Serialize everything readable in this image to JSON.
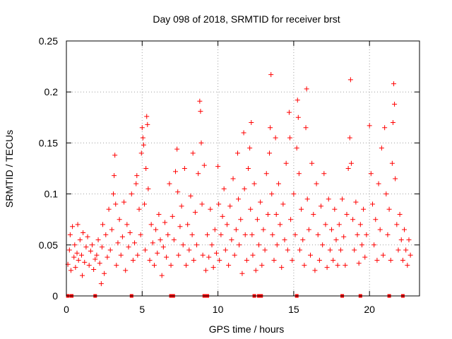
{
  "chart_data": {
    "type": "scatter",
    "title": "Day 098 of 2018, SRMTID for receiver brst",
    "xlabel": "GPS time / hours",
    "ylabel": "SRMTID / TECUs",
    "xlim": [
      0,
      23.3
    ],
    "ylim": [
      0,
      0.25
    ],
    "x_ticks": [
      0,
      5,
      10,
      15,
      20
    ],
    "x_tick_labels": [
      "0",
      "5",
      "10",
      "15",
      "20"
    ],
    "y_ticks": [
      0,
      0.05,
      0.1,
      0.15,
      0.2,
      0.25
    ],
    "y_tick_labels": [
      "0",
      "0.05",
      "0.1",
      "0.15",
      "0.2",
      "0.25"
    ],
    "grid": true,
    "marker": "+",
    "color": "#ff0000",
    "zero_markers_x": [
      0.1,
      0.35,
      1.9,
      4.3,
      6.9,
      7.05,
      9.1,
      9.3,
      12.4,
      12.7,
      12.85,
      15.2,
      18.2,
      19.4,
      21.3,
      22.2
    ],
    "series": [
      {
        "name": "SRMTID",
        "points": [
          [
            0.1,
            0.031
          ],
          [
            0.2,
            0.045
          ],
          [
            0.25,
            0.06
          ],
          [
            0.3,
            0.025
          ],
          [
            0.4,
            0.068
          ],
          [
            0.5,
            0.038
          ],
          [
            0.55,
            0.05
          ],
          [
            0.6,
            0.028
          ],
          [
            0.7,
            0.042
          ],
          [
            0.75,
            0.07
          ],
          [
            0.8,
            0.035
          ],
          [
            0.9,
            0.055
          ],
          [
            1.0,
            0.04
          ],
          [
            1.05,
            0.02
          ],
          [
            1.1,
            0.062
          ],
          [
            1.2,
            0.033
          ],
          [
            1.3,
            0.048
          ],
          [
            1.4,
            0.058
          ],
          [
            1.5,
            0.03
          ],
          [
            1.6,
            0.044
          ],
          [
            1.7,
            0.05
          ],
          [
            1.8,
            0.026
          ],
          [
            1.9,
            0.036
          ],
          [
            2.0,
            0.04
          ],
          [
            2.1,
            0.055
          ],
          [
            2.2,
            0.032
          ],
          [
            2.3,
            0.012
          ],
          [
            2.35,
            0.048
          ],
          [
            2.4,
            0.07
          ],
          [
            2.5,
            0.022
          ],
          [
            2.6,
            0.06
          ],
          [
            2.7,
            0.038
          ],
          [
            2.8,
            0.085
          ],
          [
            2.9,
            0.045
          ],
          [
            3.0,
            0.065
          ],
          [
            3.1,
            0.1
          ],
          [
            3.15,
            0.118
          ],
          [
            3.2,
            0.138
          ],
          [
            3.25,
            0.09
          ],
          [
            3.3,
            0.03
          ],
          [
            3.4,
            0.052
          ],
          [
            3.5,
            0.075
          ],
          [
            3.6,
            0.04
          ],
          [
            3.7,
            0.058
          ],
          [
            3.8,
            0.092
          ],
          [
            3.9,
            0.025
          ],
          [
            4.0,
            0.07
          ],
          [
            4.1,
            0.048
          ],
          [
            4.2,
            0.062
          ],
          [
            4.3,
            0.1
          ],
          [
            4.4,
            0.035
          ],
          [
            4.5,
            0.052
          ],
          [
            4.6,
            0.11
          ],
          [
            4.65,
            0.118
          ],
          [
            4.7,
            0.04
          ],
          [
            4.8,
            0.085
          ],
          [
            4.9,
            0.06
          ],
          [
            4.95,
            0.14
          ],
          [
            5.0,
            0.165
          ],
          [
            5.05,
            0.155
          ],
          [
            5.1,
            0.148
          ],
          [
            5.15,
            0.09
          ],
          [
            5.2,
            0.045
          ],
          [
            5.25,
            0.125
          ],
          [
            5.3,
            0.176
          ],
          [
            5.35,
            0.168
          ],
          [
            5.4,
            0.105
          ],
          [
            5.5,
            0.035
          ],
          [
            5.6,
            0.07
          ],
          [
            5.7,
            0.052
          ],
          [
            5.8,
            0.03
          ],
          [
            5.9,
            0.065
          ],
          [
            6.0,
            0.042
          ],
          [
            6.1,
            0.08
          ],
          [
            6.2,
            0.055
          ],
          [
            6.3,
            0.02
          ],
          [
            6.4,
            0.048
          ],
          [
            6.5,
            0.072
          ],
          [
            6.6,
            0.038
          ],
          [
            6.7,
            0.06
          ],
          [
            6.8,
            0.11
          ],
          [
            6.9,
            0.03
          ],
          [
            7.0,
            0.078
          ],
          [
            7.1,
            0.055
          ],
          [
            7.2,
            0.122
          ],
          [
            7.3,
            0.144
          ],
          [
            7.35,
            0.102
          ],
          [
            7.4,
            0.04
          ],
          [
            7.5,
            0.068
          ],
          [
            7.6,
            0.088
          ],
          [
            7.7,
            0.05
          ],
          [
            7.8,
            0.125
          ],
          [
            7.9,
            0.03
          ],
          [
            8.0,
            0.07
          ],
          [
            8.1,
            0.045
          ],
          [
            8.2,
            0.098
          ],
          [
            8.3,
            0.06
          ],
          [
            8.35,
            0.14
          ],
          [
            8.4,
            0.035
          ],
          [
            8.5,
            0.082
          ],
          [
            8.6,
            0.05
          ],
          [
            8.7,
            0.12
          ],
          [
            8.8,
            0.191
          ],
          [
            8.85,
            0.181
          ],
          [
            8.9,
            0.15
          ],
          [
            8.95,
            0.09
          ],
          [
            9.0,
            0.04
          ],
          [
            9.1,
            0.128
          ],
          [
            9.2,
            0.025
          ],
          [
            9.3,
            0.06
          ],
          [
            9.4,
            0.038
          ],
          [
            9.5,
            0.085
          ],
          [
            9.6,
            0.05
          ],
          [
            9.7,
            0.028
          ],
          [
            9.8,
            0.065
          ],
          [
            9.9,
            0.042
          ],
          [
            10.0,
            0.127
          ],
          [
            10.05,
            0.09
          ],
          [
            10.1,
            0.035
          ],
          [
            10.2,
            0.06
          ],
          [
            10.3,
            0.078
          ],
          [
            10.4,
            0.105
          ],
          [
            10.5,
            0.045
          ],
          [
            10.6,
            0.07
          ],
          [
            10.7,
            0.03
          ],
          [
            10.8,
            0.088
          ],
          [
            10.9,
            0.055
          ],
          [
            11.0,
            0.115
          ],
          [
            11.1,
            0.04
          ],
          [
            11.2,
            0.065
          ],
          [
            11.3,
            0.14
          ],
          [
            11.35,
            0.095
          ],
          [
            11.4,
            0.05
          ],
          [
            11.5,
            0.075
          ],
          [
            11.6,
            0.022
          ],
          [
            11.7,
            0.16
          ],
          [
            11.75,
            0.105
          ],
          [
            11.8,
            0.06
          ],
          [
            11.9,
            0.035
          ],
          [
            12.0,
            0.125
          ],
          [
            12.1,
            0.145
          ],
          [
            12.15,
            0.085
          ],
          [
            12.2,
            0.17
          ],
          [
            12.25,
            0.06
          ],
          [
            12.3,
            0.04
          ],
          [
            12.4,
            0.11
          ],
          [
            12.5,
            0.025
          ],
          [
            12.6,
            0.075
          ],
          [
            12.7,
            0.05
          ],
          [
            12.8,
            0.092
          ],
          [
            12.9,
            0.03
          ],
          [
            13.0,
            0.065
          ],
          [
            13.1,
            0.045
          ],
          [
            13.2,
            0.12
          ],
          [
            13.3,
            0.08
          ],
          [
            13.4,
            0.14
          ],
          [
            13.45,
            0.165
          ],
          [
            13.5,
            0.217
          ],
          [
            13.55,
            0.1
          ],
          [
            13.6,
            0.06
          ],
          [
            13.7,
            0.035
          ],
          [
            13.8,
            0.155
          ],
          [
            13.85,
            0.08
          ],
          [
            13.9,
            0.05
          ],
          [
            14.0,
            0.11
          ],
          [
            14.1,
            0.07
          ],
          [
            14.2,
            0.028
          ],
          [
            14.3,
            0.09
          ],
          [
            14.4,
            0.055
          ],
          [
            14.5,
            0.13
          ],
          [
            14.6,
            0.045
          ],
          [
            14.7,
            0.18
          ],
          [
            14.75,
            0.155
          ],
          [
            14.8,
            0.075
          ],
          [
            14.9,
            0.035
          ],
          [
            15.0,
            0.1
          ],
          [
            15.1,
            0.06
          ],
          [
            15.2,
            0.145
          ],
          [
            15.25,
            0.192
          ],
          [
            15.3,
            0.175
          ],
          [
            15.35,
            0.12
          ],
          [
            15.4,
            0.045
          ],
          [
            15.5,
            0.085
          ],
          [
            15.6,
            0.055
          ],
          [
            15.7,
            0.03
          ],
          [
            15.8,
            0.165
          ],
          [
            15.85,
            0.203
          ],
          [
            15.9,
            0.095
          ],
          [
            16.0,
            0.065
          ],
          [
            16.1,
            0.04
          ],
          [
            16.2,
            0.13
          ],
          [
            16.3,
            0.08
          ],
          [
            16.4,
            0.025
          ],
          [
            16.5,
            0.11
          ],
          [
            16.6,
            0.06
          ],
          [
            16.7,
            0.035
          ],
          [
            16.8,
            0.088
          ],
          [
            16.9,
            0.05
          ],
          [
            17.0,
            0.12
          ],
          [
            17.1,
            0.07
          ],
          [
            17.2,
            0.028
          ],
          [
            17.3,
            0.095
          ],
          [
            17.4,
            0.045
          ],
          [
            17.5,
            0.065
          ],
          [
            17.6,
            0.035
          ],
          [
            17.7,
            0.085
          ],
          [
            17.8,
            0.055
          ],
          [
            17.9,
            0.03
          ],
          [
            18.0,
            0.07
          ],
          [
            18.1,
            0.045
          ],
          [
            18.2,
            0.095
          ],
          [
            18.3,
            0.058
          ],
          [
            18.4,
            0.03
          ],
          [
            18.5,
            0.08
          ],
          [
            18.6,
            0.125
          ],
          [
            18.7,
            0.155
          ],
          [
            18.75,
            0.212
          ],
          [
            18.8,
            0.13
          ],
          [
            18.9,
            0.075
          ],
          [
            19.0,
            0.045
          ],
          [
            19.1,
            0.092
          ],
          [
            19.2,
            0.06
          ],
          [
            19.3,
            0.032
          ],
          [
            19.4,
            0.07
          ],
          [
            19.5,
            0.05
          ],
          [
            19.6,
            0.085
          ],
          [
            19.7,
            0.038
          ],
          [
            19.8,
            0.06
          ],
          [
            20.0,
            0.167
          ],
          [
            20.1,
            0.12
          ],
          [
            20.2,
            0.09
          ],
          [
            20.3,
            0.05
          ],
          [
            20.4,
            0.075
          ],
          [
            20.5,
            0.035
          ],
          [
            20.6,
            0.11
          ],
          [
            20.7,
            0.065
          ],
          [
            20.8,
            0.145
          ],
          [
            20.9,
            0.04
          ],
          [
            21.0,
            0.165
          ],
          [
            21.1,
            0.1
          ],
          [
            21.2,
            0.06
          ],
          [
            21.3,
            0.085
          ],
          [
            21.4,
            0.035
          ],
          [
            21.5,
            0.13
          ],
          [
            21.55,
            0.17
          ],
          [
            21.6,
            0.208
          ],
          [
            21.65,
            0.188
          ],
          [
            21.7,
            0.115
          ],
          [
            21.8,
            0.07
          ],
          [
            21.9,
            0.045
          ],
          [
            22.0,
            0.08
          ],
          [
            22.1,
            0.055
          ],
          [
            22.2,
            0.035
          ],
          [
            22.3,
            0.065
          ],
          [
            22.4,
            0.045
          ],
          [
            22.5,
            0.03
          ],
          [
            22.6,
            0.055
          ],
          [
            22.7,
            0.04
          ]
        ]
      }
    ]
  }
}
